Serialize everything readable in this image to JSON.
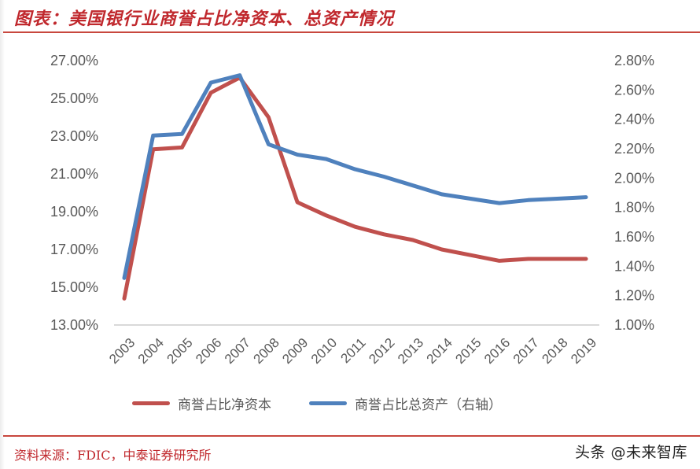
{
  "header": {
    "title": "图表：美国银行业商誉占比净资本、总资产情况"
  },
  "colors": {
    "red_series": "#c0504d",
    "blue_series": "#4f81bd",
    "title_red": "#c0282d",
    "axis_text": "#595959",
    "baseline": "#d9d9d9"
  },
  "legend": {
    "items": [
      {
        "label": "商誉占比净资本",
        "color": "#c0504d"
      },
      {
        "label": "商誉占比总资产（右轴）",
        "color": "#4f81bd"
      }
    ]
  },
  "footer": {
    "source": "资料来源：FDIC，中泰证券研究所",
    "watermark": "头条 @未来智库"
  },
  "chart_data": {
    "type": "line",
    "title": "美国银行业商誉占比净资本、总资产情况",
    "xlabel": "",
    "ylabel": "",
    "categories": [
      "2003",
      "2004",
      "2005",
      "2006",
      "2007",
      "2008",
      "2009",
      "2010",
      "2011",
      "2012",
      "2013",
      "2014",
      "2015",
      "2016",
      "2017",
      "2018",
      "2019"
    ],
    "series": [
      {
        "name": "商誉占比净资本",
        "axis": "left",
        "color": "#c0504d",
        "values": [
          14.4,
          22.3,
          22.4,
          25.3,
          26.1,
          24.0,
          19.5,
          18.8,
          18.2,
          17.8,
          17.5,
          17.0,
          16.7,
          16.4,
          16.5,
          16.5,
          16.5
        ]
      },
      {
        "name": "商誉占比总资产（右轴）",
        "axis": "right",
        "color": "#4f81bd",
        "values": [
          1.32,
          2.29,
          2.3,
          2.65,
          2.7,
          2.23,
          2.16,
          2.13,
          2.06,
          2.01,
          1.95,
          1.89,
          1.86,
          1.83,
          1.85,
          1.86,
          1.87
        ]
      }
    ],
    "y_left": {
      "ticks": [
        "27.00%",
        "25.00%",
        "23.00%",
        "21.00%",
        "19.00%",
        "17.00%",
        "15.00%",
        "13.00%"
      ],
      "range": [
        13,
        27
      ]
    },
    "y_right": {
      "ticks": [
        "2.80%",
        "2.60%",
        "2.40%",
        "2.20%",
        "2.00%",
        "1.80%",
        "1.60%",
        "1.40%",
        "1.20%",
        "1.00%"
      ],
      "range": [
        1.0,
        2.8
      ]
    },
    "grid": false,
    "legend_position": "bottom"
  }
}
